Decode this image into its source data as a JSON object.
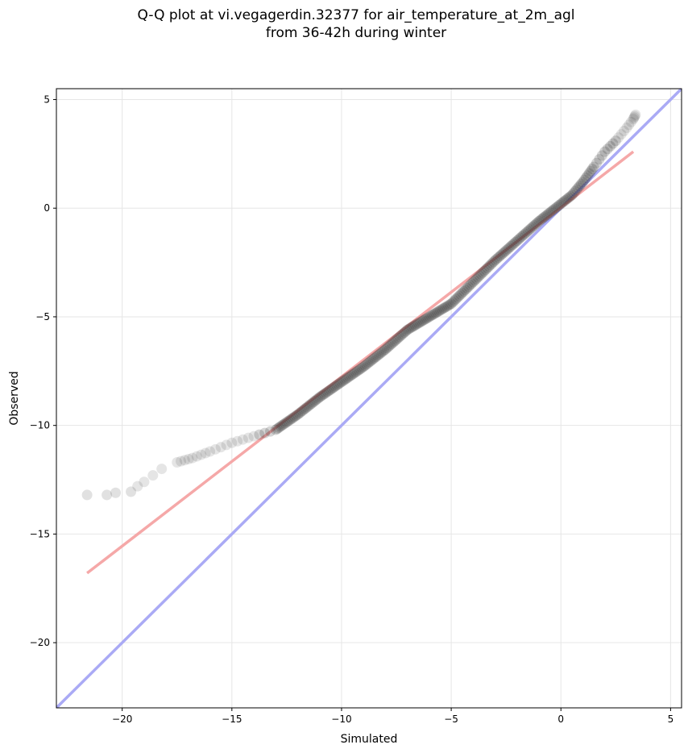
{
  "chart_data": {
    "type": "scatter",
    "title": "Q-Q plot at vi.vegagerdin.32377 for air_temperature_at_2m_agl",
    "subtitle": "from 36-42h during winter",
    "xlabel": "Simulated",
    "ylabel": "Observed",
    "xlim": [
      -23,
      5.5
    ],
    "ylim": [
      -23,
      5.5
    ],
    "grid": true,
    "x_ticks": [
      -20,
      -15,
      -10,
      -5,
      0,
      5
    ],
    "y_ticks": [
      -20,
      -15,
      -10,
      -5,
      0,
      5
    ],
    "x_tick_labels": [
      "−20",
      "−15",
      "−10",
      "−5",
      "0",
      "5"
    ],
    "y_tick_labels": [
      "−20",
      "−15",
      "−10",
      "−5",
      "0",
      "5"
    ],
    "reference_lines": [
      {
        "role": "identity",
        "color": "#aaaaf5",
        "points": [
          [
            -23,
            -23
          ],
          [
            5.5,
            5.5
          ]
        ]
      },
      {
        "role": "fit",
        "color": "#f5a8a8",
        "points": [
          [
            -21.6,
            -16.8
          ],
          [
            3.3,
            2.6
          ]
        ]
      }
    ],
    "quantile_curve_color": "#2b2b2b",
    "quantile_curve": [
      [
        -21.6,
        -13.2
      ],
      [
        -20.7,
        -13.2
      ],
      [
        -20.3,
        -13.1
      ],
      [
        -19.6,
        -13.05
      ],
      [
        -19.3,
        -12.8
      ],
      [
        -19.0,
        -12.6
      ],
      [
        -18.6,
        -12.3
      ],
      [
        -18.2,
        -12.0
      ],
      [
        -17.5,
        -11.7
      ],
      [
        -16.8,
        -11.5
      ],
      [
        -16.0,
        -11.2
      ],
      [
        -15.0,
        -10.8
      ],
      [
        -14.0,
        -10.5
      ],
      [
        -13.0,
        -10.2
      ],
      [
        -12.0,
        -9.5
      ],
      [
        -11.0,
        -8.7
      ],
      [
        -10.0,
        -8.0
      ],
      [
        -9.0,
        -7.3
      ],
      [
        -8.0,
        -6.5
      ],
      [
        -7.0,
        -5.6
      ],
      [
        -6.0,
        -5.0
      ],
      [
        -5.0,
        -4.4
      ],
      [
        -4.0,
        -3.4
      ],
      [
        -3.0,
        -2.4
      ],
      [
        -2.0,
        -1.5
      ],
      [
        -1.0,
        -0.6
      ],
      [
        0.0,
        0.2
      ],
      [
        0.5,
        0.6
      ],
      [
        1.0,
        1.2
      ],
      [
        1.5,
        1.9
      ],
      [
        2.0,
        2.6
      ],
      [
        2.5,
        3.1
      ],
      [
        3.0,
        3.7
      ],
      [
        3.3,
        4.1
      ],
      [
        3.4,
        4.3
      ]
    ]
  }
}
